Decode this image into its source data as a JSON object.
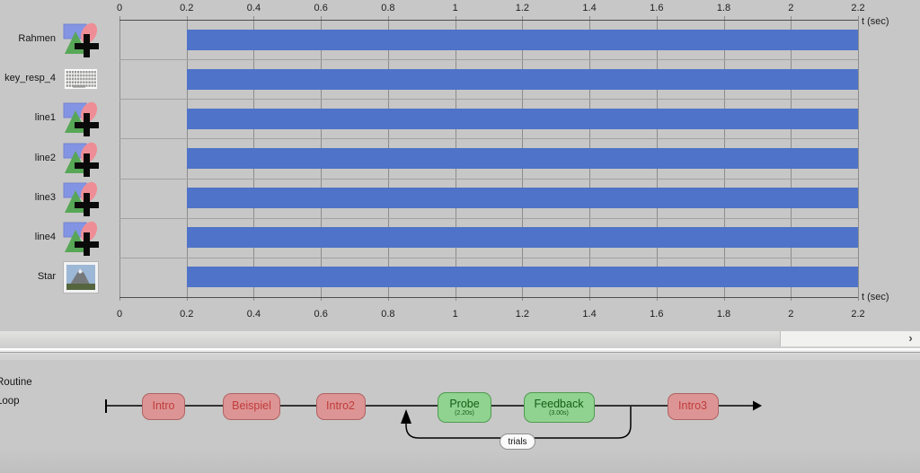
{
  "timeline": {
    "unit_label_top": "t (sec)",
    "unit_label_bottom": "t (sec)",
    "axis_ticks": [
      "0",
      "0.2",
      "0.4",
      "0.6",
      "0.8",
      "1",
      "1.2",
      "1.4",
      "1.6",
      "1.8",
      "2",
      "2.2"
    ],
    "axis_max": 2.2,
    "bar_color": "#4e73c8",
    "components": [
      {
        "name": "Rahmen",
        "icon": "polygon-icon",
        "start": 0.2,
        "end": 2.2
      },
      {
        "name": "key_resp_4",
        "icon": "keyboard-icon",
        "start": 0.2,
        "end": 2.2
      },
      {
        "name": "line1",
        "icon": "polygon-icon",
        "start": 0.2,
        "end": 2.2
      },
      {
        "name": "line2",
        "icon": "polygon-icon",
        "start": 0.2,
        "end": 2.2
      },
      {
        "name": "line3",
        "icon": "polygon-icon",
        "start": 0.2,
        "end": 2.2
      },
      {
        "name": "line4",
        "icon": "polygon-icon",
        "start": 0.2,
        "end": 2.2
      },
      {
        "name": "Star",
        "icon": "image-icon",
        "start": 0.2,
        "end": 2.2
      }
    ]
  },
  "chart_data": {
    "type": "bar",
    "orientation": "horizontal-timeline",
    "categories": [
      "Rahmen",
      "key_resp_4",
      "line1",
      "line2",
      "line3",
      "line4",
      "Star"
    ],
    "series": [
      {
        "name": "component active period (sec)",
        "values": [
          [
            0.2,
            2.2
          ],
          [
            0.2,
            2.2
          ],
          [
            0.2,
            2.2
          ],
          [
            0.2,
            2.2
          ],
          [
            0.2,
            2.2
          ],
          [
            0.2,
            2.2
          ],
          [
            0.2,
            2.2
          ]
        ]
      }
    ],
    "xlabel": "t (sec)",
    "xlim": [
      0,
      2.2
    ],
    "x_ticks": [
      0,
      0.2,
      0.4,
      0.6,
      0.8,
      1,
      1.2,
      1.4,
      1.6,
      1.8,
      2,
      2.2
    ],
    "grid": true,
    "bar_color": "#4e73c8"
  },
  "scrollbar": {
    "right_arrow": "›"
  },
  "flow": {
    "routine_label": "Routine",
    "loop_label": "Loop",
    "loop_name": "trials",
    "items": [
      {
        "label": "Intro",
        "kind": "routine"
      },
      {
        "label": "Beispiel",
        "kind": "routine"
      },
      {
        "label": "Intro2",
        "kind": "routine"
      },
      {
        "label": "Probe",
        "sublabel": "(2.20s)",
        "kind": "routine-timed"
      },
      {
        "label": "Feedback",
        "sublabel": "(3.00s)",
        "kind": "routine-timed"
      },
      {
        "label": "Intro3",
        "kind": "routine"
      }
    ],
    "colors": {
      "routine_fill": "#dd9494",
      "routine_border": "#b06262",
      "routine_text": "#c13c3c",
      "timed_fill": "#90d290",
      "timed_border": "#4f9b4f",
      "timed_text": "#135e13"
    }
  }
}
